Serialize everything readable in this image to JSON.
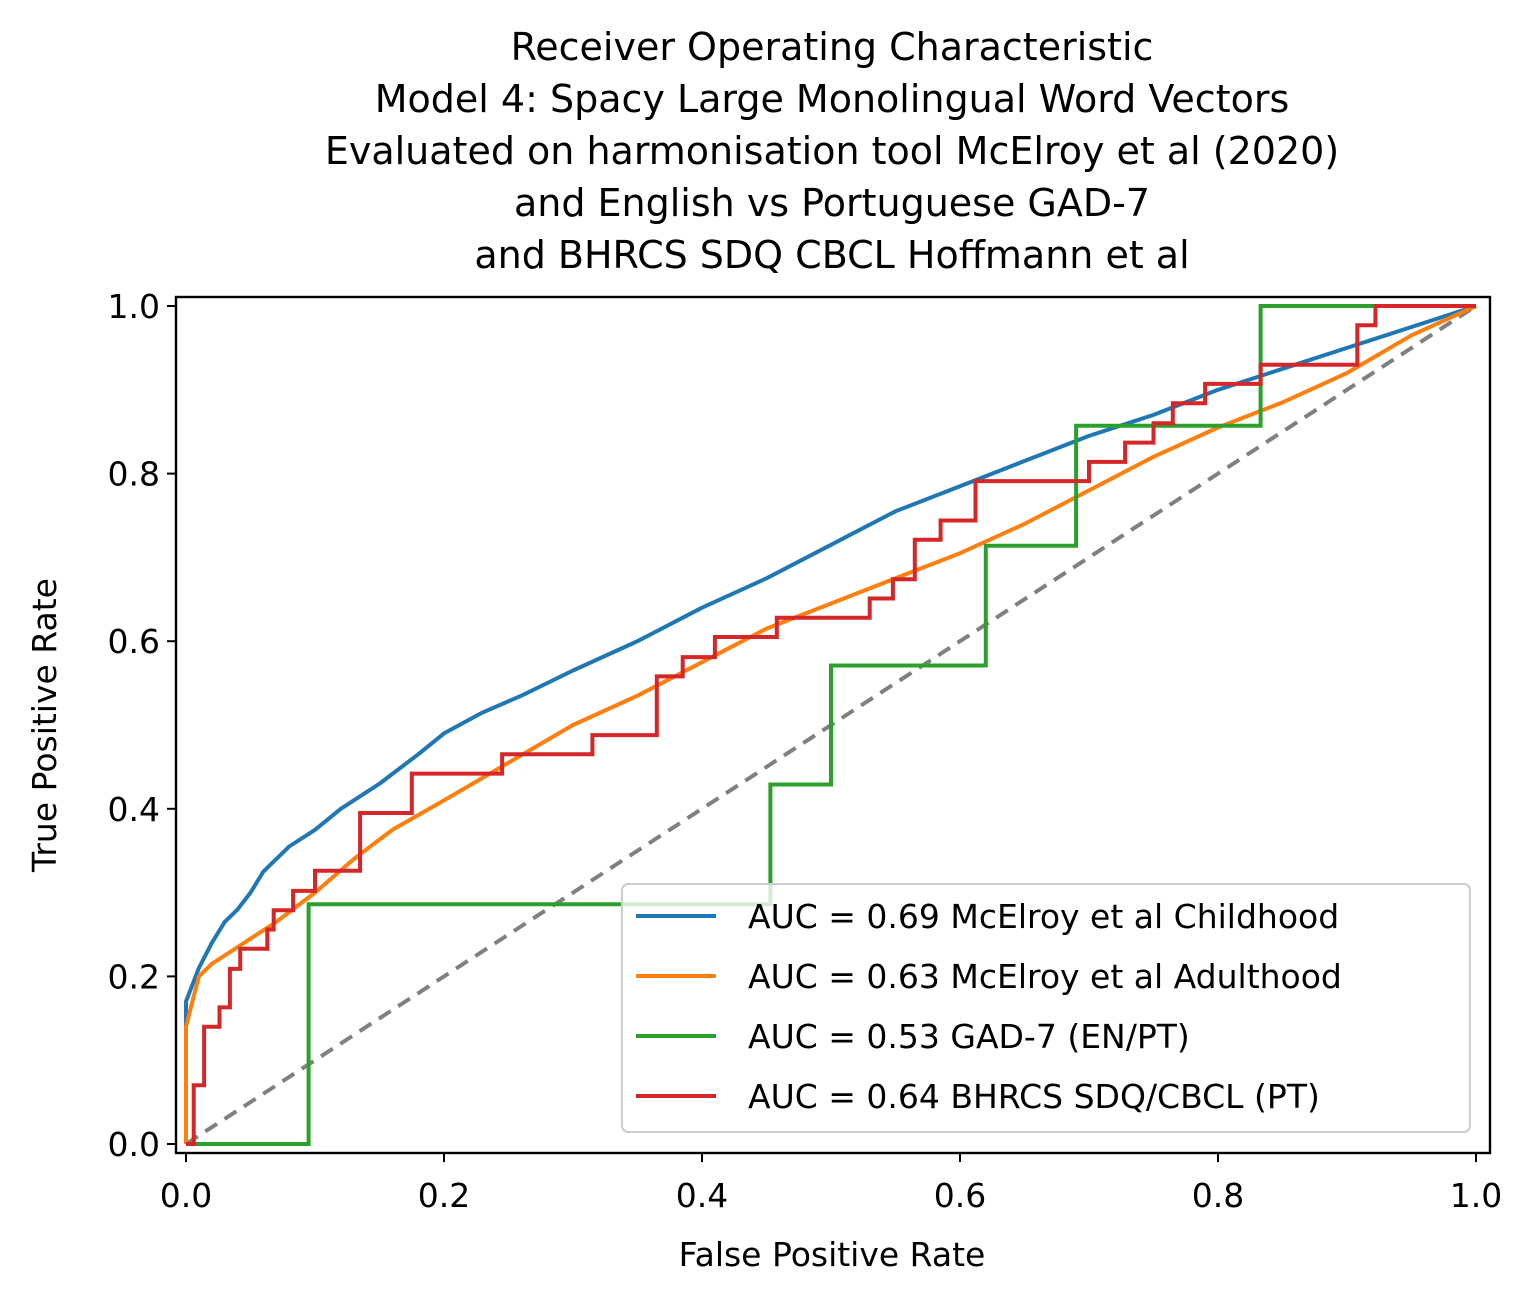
{
  "chart_data": {
    "type": "line",
    "title_lines": [
      "Receiver Operating Characteristic",
      "Model 4: Spacy Large Monolingual Word Vectors",
      "Evaluated on harmonisation tool McElroy et al (2020)",
      "and English vs Portuguese GAD-7",
      "and BHRCS SDQ CBCL Hoffmann et al"
    ],
    "xlabel": "False Positive Rate",
    "ylabel": "True Positive Rate",
    "xlim": [
      0,
      1
    ],
    "ylim": [
      0,
      1
    ],
    "xticks": [
      0.0,
      0.2,
      0.4,
      0.6,
      0.8,
      1.0
    ],
    "yticks": [
      0.0,
      0.2,
      0.4,
      0.6,
      0.8,
      1.0
    ],
    "xtick_labels": [
      "0.0",
      "0.2",
      "0.4",
      "0.6",
      "0.8",
      "1.0"
    ],
    "ytick_labels": [
      "0.0",
      "0.2",
      "0.4",
      "0.6",
      "0.8",
      "1.0"
    ],
    "grid": false,
    "legend_position": "lower-right",
    "diagonal": {
      "points": [
        [
          0,
          0
        ],
        [
          1,
          1
        ]
      ],
      "color": "#808080",
      "style": "dashed"
    },
    "series": [
      {
        "name": "AUC = 0.69 McElroy et al Childhood",
        "color": "#1f77b4",
        "step": false,
        "points": [
          [
            0,
            0
          ],
          [
            0,
            0.17
          ],
          [
            0.005,
            0.19
          ],
          [
            0.01,
            0.21
          ],
          [
            0.02,
            0.24
          ],
          [
            0.03,
            0.265
          ],
          [
            0.04,
            0.28
          ],
          [
            0.05,
            0.3
          ],
          [
            0.06,
            0.325
          ],
          [
            0.08,
            0.355
          ],
          [
            0.1,
            0.375
          ],
          [
            0.12,
            0.4
          ],
          [
            0.15,
            0.43
          ],
          [
            0.18,
            0.465
          ],
          [
            0.2,
            0.49
          ],
          [
            0.23,
            0.515
          ],
          [
            0.26,
            0.535
          ],
          [
            0.3,
            0.565
          ],
          [
            0.35,
            0.6
          ],
          [
            0.4,
            0.64
          ],
          [
            0.45,
            0.675
          ],
          [
            0.5,
            0.715
          ],
          [
            0.55,
            0.755
          ],
          [
            0.6,
            0.785
          ],
          [
            0.65,
            0.815
          ],
          [
            0.7,
            0.845
          ],
          [
            0.75,
            0.87
          ],
          [
            0.8,
            0.9
          ],
          [
            0.85,
            0.925
          ],
          [
            0.9,
            0.95
          ],
          [
            0.95,
            0.975
          ],
          [
            1,
            1
          ]
        ]
      },
      {
        "name": "AUC = 0.63 McElroy et al Adulthood",
        "color": "#ff7f0e",
        "step": false,
        "points": [
          [
            0,
            0
          ],
          [
            0,
            0.14
          ],
          [
            0.005,
            0.17
          ],
          [
            0.01,
            0.2
          ],
          [
            0.02,
            0.215
          ],
          [
            0.03,
            0.225
          ],
          [
            0.05,
            0.245
          ],
          [
            0.07,
            0.265
          ],
          [
            0.1,
            0.3
          ],
          [
            0.13,
            0.34
          ],
          [
            0.16,
            0.375
          ],
          [
            0.2,
            0.41
          ],
          [
            0.25,
            0.455
          ],
          [
            0.3,
            0.5
          ],
          [
            0.35,
            0.535
          ],
          [
            0.4,
            0.575
          ],
          [
            0.45,
            0.615
          ],
          [
            0.5,
            0.645
          ],
          [
            0.55,
            0.675
          ],
          [
            0.6,
            0.705
          ],
          [
            0.65,
            0.74
          ],
          [
            0.7,
            0.78
          ],
          [
            0.75,
            0.82
          ],
          [
            0.8,
            0.855
          ],
          [
            0.85,
            0.885
          ],
          [
            0.9,
            0.92
          ],
          [
            0.95,
            0.965
          ],
          [
            1,
            1
          ]
        ]
      },
      {
        "name": "AUC = 0.53 GAD-7 (EN/PT)",
        "color": "#2ca02c",
        "step": true,
        "points": [
          [
            0,
            0
          ],
          [
            0.095,
            0
          ],
          [
            0.095,
            0.286
          ],
          [
            0.453,
            0.286
          ],
          [
            0.453,
            0.429
          ],
          [
            0.5,
            0.429
          ],
          [
            0.5,
            0.571
          ],
          [
            0.62,
            0.571
          ],
          [
            0.62,
            0.714
          ],
          [
            0.69,
            0.714
          ],
          [
            0.69,
            0.857
          ],
          [
            0.833,
            0.857
          ],
          [
            0.833,
            1
          ],
          [
            1,
            1
          ]
        ]
      },
      {
        "name": "AUC = 0.64 BHRCS SDQ/CBCL (PT)",
        "color": "#d62728",
        "step": true,
        "points": [
          [
            0,
            0
          ],
          [
            0.006,
            0
          ],
          [
            0.006,
            0.07
          ],
          [
            0.014,
            0.07
          ],
          [
            0.014,
            0.14
          ],
          [
            0.026,
            0.14
          ],
          [
            0.026,
            0.163
          ],
          [
            0.034,
            0.163
          ],
          [
            0.034,
            0.209
          ],
          [
            0.042,
            0.209
          ],
          [
            0.042,
            0.233
          ],
          [
            0.063,
            0.233
          ],
          [
            0.063,
            0.256
          ],
          [
            0.068,
            0.256
          ],
          [
            0.068,
            0.279
          ],
          [
            0.083,
            0.279
          ],
          [
            0.083,
            0.302
          ],
          [
            0.1,
            0.302
          ],
          [
            0.1,
            0.326
          ],
          [
            0.135,
            0.326
          ],
          [
            0.135,
            0.395
          ],
          [
            0.175,
            0.395
          ],
          [
            0.175,
            0.442
          ],
          [
            0.245,
            0.442
          ],
          [
            0.245,
            0.465
          ],
          [
            0.315,
            0.465
          ],
          [
            0.315,
            0.488
          ],
          [
            0.365,
            0.488
          ],
          [
            0.365,
            0.558
          ],
          [
            0.385,
            0.558
          ],
          [
            0.385,
            0.581
          ],
          [
            0.41,
            0.581
          ],
          [
            0.41,
            0.605
          ],
          [
            0.458,
            0.605
          ],
          [
            0.458,
            0.628
          ],
          [
            0.53,
            0.628
          ],
          [
            0.53,
            0.651
          ],
          [
            0.548,
            0.651
          ],
          [
            0.548,
            0.674
          ],
          [
            0.565,
            0.674
          ],
          [
            0.565,
            0.721
          ],
          [
            0.585,
            0.721
          ],
          [
            0.585,
            0.744
          ],
          [
            0.612,
            0.744
          ],
          [
            0.612,
            0.791
          ],
          [
            0.7,
            0.791
          ],
          [
            0.7,
            0.814
          ],
          [
            0.728,
            0.814
          ],
          [
            0.728,
            0.837
          ],
          [
            0.75,
            0.837
          ],
          [
            0.75,
            0.86
          ],
          [
            0.765,
            0.86
          ],
          [
            0.765,
            0.884
          ],
          [
            0.79,
            0.884
          ],
          [
            0.79,
            0.907
          ],
          [
            0.833,
            0.907
          ],
          [
            0.833,
            0.93
          ],
          [
            0.908,
            0.93
          ],
          [
            0.908,
            0.977
          ],
          [
            0.922,
            0.977
          ],
          [
            0.922,
            1
          ],
          [
            1,
            1
          ]
        ]
      }
    ]
  }
}
